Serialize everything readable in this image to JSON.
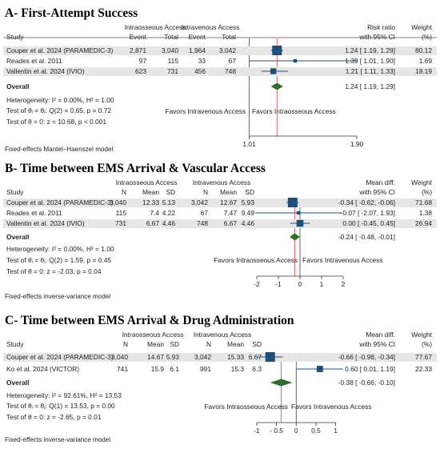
{
  "panels": [
    {
      "title": "A- First-Attempt Success",
      "header_groups": [
        "Intraosseous Access",
        "Intravenous Access"
      ],
      "header_cols": [
        "Study",
        "Event",
        "Total",
        "Event",
        "Total"
      ],
      "ci_header": [
        "Risk ratio",
        "with 95% CI"
      ],
      "weight_header": [
        "Weight",
        "(%)"
      ],
      "studies": [
        {
          "name": "Couper et al. 2024 (PARAMEDIC-3)",
          "cells": [
            "2,871",
            "3,040",
            "1,964",
            "3,042"
          ],
          "est": 1.24,
          "lo": 1.19,
          "hi": 1.29,
          "ci_text": "1.24 [ 1.19, 1.29]",
          "weight": "80.12",
          "wnum": 80.12
        },
        {
          "name": "Reades et al. 2011",
          "cells": [
            "97",
            "115",
            "33",
            "67"
          ],
          "est": 1.39,
          "lo": 1.01,
          "hi": 1.9,
          "ci_text": "1.39 [ 1.01, 1.90]",
          "weight": "1.69",
          "wnum": 1.69
        },
        {
          "name": "Vallentin et al. 2024 (IVIO)",
          "cells": [
            "623",
            "731",
            "456",
            "748"
          ],
          "est": 1.21,
          "lo": 1.11,
          "hi": 1.33,
          "ci_text": "1.21 [ 1.11, 1.33]",
          "weight": "18.19",
          "wnum": 18.19
        }
      ],
      "overall": {
        "label": "Overall",
        "est": 1.24,
        "lo": 1.19,
        "hi": 1.29,
        "ci_text": "1.24 [ 1.19, 1.29]"
      },
      "stats": [
        "Heterogeneity: I² = 0.00%, H² = 1.00",
        "Test of θᵢ = θⱼ: Q(2) = 0.65, p = 0.72",
        "Test of θ = 0: z = 10.68, p < 0.001"
      ],
      "favors_left": "Favors Intravenous Access",
      "favors_right": "Favors Intraosseous Access",
      "axis": {
        "min": 1.0,
        "max": 1.9,
        "ticks": [
          {
            "v": 1.01,
            "label": "1.01"
          },
          {
            "v": 1.9,
            "label": "1.90"
          }
        ],
        "null_value": 1.01
      },
      "model_note": "Fixed-effects Mantel–Haenszel model"
    },
    {
      "title": "B- Time between EMS Arrival & Vascular Access",
      "header_groups": [
        "Intraosseous Access",
        "Intravenous Access"
      ],
      "header_cols": [
        "Study",
        "N",
        "Mean",
        "SD",
        "N",
        "Mean",
        "SD"
      ],
      "ci_header": [
        "Mean diff.",
        "with 95% CI"
      ],
      "weight_header": [
        "Weight",
        "(%)"
      ],
      "studies": [
        {
          "name": "Couper et al. 2024 (PARAMEDIC-3)",
          "cells": [
            "3,040",
            "12.33",
            "5.13",
            "3,042",
            "12.67",
            "5.93"
          ],
          "est": -0.34,
          "lo": -0.62,
          "hi": -0.06,
          "ci_text": "-0.34 [ -0.62, -0.06]",
          "weight": "71.68",
          "wnum": 71.68
        },
        {
          "name": "Reades et al. 2011",
          "cells": [
            "115",
            "7.4",
            "4.22",
            "67",
            "7.47",
            "9.49"
          ],
          "est": -0.07,
          "lo": -2.07,
          "hi": 1.93,
          "ci_text": "-0.07 [ -2.07, 1.93]",
          "weight": "1.38",
          "wnum": 1.38
        },
        {
          "name": "Vallentin et al. 2024 (IVIO)",
          "cells": [
            "731",
            "6.67",
            "4.46",
            "748",
            "6.67",
            "4.46"
          ],
          "est": 0.0,
          "lo": -0.45,
          "hi": 0.45,
          "ci_text": "0.00 [ -0.45, 0.45]",
          "weight": "26.94",
          "wnum": 26.94
        }
      ],
      "overall": {
        "label": "Overall",
        "est": -0.24,
        "lo": -0.48,
        "hi": -0.01,
        "ci_text": "-0.24 [ -0.48, -0.01]"
      },
      "stats": [
        "Heterogeneity: I² = 0.00%, H² = 1.00",
        "Test of θᵢ = θⱼ: Q(2) = 1.59, p = 0.45",
        "Test of θ = 0: z = -2.03, p = 0.04"
      ],
      "favors_left": "Favors Intraosseous Access",
      "favors_right": "Favors Intravenous Access",
      "axis": {
        "min": -2,
        "max": 2,
        "ticks": [
          {
            "v": -2,
            "label": "-2"
          },
          {
            "v": -1,
            "label": "-1"
          },
          {
            "v": 0,
            "label": "0"
          },
          {
            "v": 1,
            "label": "1"
          },
          {
            "v": 2,
            "label": "2"
          }
        ],
        "null_value": 0
      },
      "model_note": "Fixed-effects inverse-variance model"
    },
    {
      "title": "C- Time between EMS Arrival & Drug Administration",
      "header_groups": [
        "Intraosseous Access",
        "Intravenous Access"
      ],
      "header_cols": [
        "Study",
        "N",
        "Mean",
        "SD",
        "N",
        "Mean",
        "SD"
      ],
      "ci_header": [
        "Mean diff.",
        "with 95% CI"
      ],
      "weight_header": [
        "Weight",
        "(%)"
      ],
      "studies": [
        {
          "name": "Couper et al. 2024 (PARAMEDIC-3)",
          "cells": [
            "3,040",
            "14.67",
            "5.93",
            "3,042",
            "15.33",
            "6.67"
          ],
          "est": -0.66,
          "lo": -0.98,
          "hi": -0.34,
          "ci_text": "-0.66 [ -0.98, -0.34]",
          "weight": "77.67",
          "wnum": 77.67
        },
        {
          "name": "Ko et al. 2024 (VICTOR)",
          "cells": [
            "741",
            "15.9",
            "6.1",
            "991",
            "15.3",
            "6.3"
          ],
          "est": 0.6,
          "lo": 0.01,
          "hi": 1.19,
          "ci_text": "0.60 [ 0.01, 1.19]",
          "weight": "22.33",
          "wnum": 22.33
        }
      ],
      "overall": {
        "label": "Overall",
        "est": -0.38,
        "lo": -0.66,
        "hi": -0.1,
        "ci_text": "-0.38 [ -0.66, -0.10]"
      },
      "stats": [
        "Heterogeneity: I² = 92.61%, H² = 13.53",
        "Test of θᵢ = θⱼ: Q(1) = 13.53, p = 0.00",
        "Test of θ = 0: z = -2.65, p = 0.01"
      ],
      "favors_left": "Favors Intraosseous Access",
      "favors_right": "Favors Intravenous Access",
      "axis": {
        "min": -1.1,
        "max": 1.15,
        "ticks": [
          {
            "v": -1,
            "label": "-1"
          },
          {
            "v": -0.5,
            "label": "- 0.5"
          },
          {
            "v": 0,
            "label": "0"
          },
          {
            "v": 0.5,
            "label": "0.5"
          },
          {
            "v": 1,
            "label": "1"
          }
        ],
        "null_value": 0
      },
      "model_note": "Fixed-effects inverse-variance model"
    }
  ],
  "colors": {
    "marker": "#1f4e79",
    "diamond": "#2e6b2e",
    "null_line": "#444444",
    "overall_line": "#e0404a",
    "favors": "#2e7d2e",
    "favors_alt": "#222222",
    "row_band": "#e6e6e6"
  },
  "chart_data": [
    {
      "type": "forest",
      "title": "A- First-Attempt Success",
      "measure": "Risk ratio",
      "categories": [
        "Couper et al. 2024 (PARAMEDIC-3)",
        "Reades et al. 2011",
        "Vallentin et al. 2024 (IVIO)",
        "Overall"
      ],
      "estimates": [
        1.24,
        1.39,
        1.21,
        1.24
      ],
      "ci_low": [
        1.19,
        1.01,
        1.11,
        1.19
      ],
      "ci_high": [
        1.29,
        1.9,
        1.33,
        1.29
      ],
      "weights": [
        80.12,
        1.69,
        18.19
      ],
      "xlim": [
        1.01,
        1.9
      ]
    },
    {
      "type": "forest",
      "title": "B- Time between EMS Arrival & Vascular Access",
      "measure": "Mean diff.",
      "categories": [
        "Couper et al. 2024 (PARAMEDIC-3)",
        "Reades et al. 2011",
        "Vallentin et al. 2024 (IVIO)",
        "Overall"
      ],
      "estimates": [
        -0.34,
        -0.07,
        0.0,
        -0.24
      ],
      "ci_low": [
        -0.62,
        -2.07,
        -0.45,
        -0.48
      ],
      "ci_high": [
        -0.06,
        1.93,
        0.45,
        -0.01
      ],
      "weights": [
        71.68,
        1.38,
        26.94
      ],
      "xlim": [
        -2,
        2
      ]
    },
    {
      "type": "forest",
      "title": "C- Time between EMS Arrival & Drug Administration",
      "measure": "Mean diff.",
      "categories": [
        "Couper et al. 2024 (PARAMEDIC-3)",
        "Ko et al. 2024 (VICTOR)",
        "Overall"
      ],
      "estimates": [
        -0.66,
        0.6,
        -0.38
      ],
      "ci_low": [
        -0.98,
        0.01,
        -0.66
      ],
      "ci_high": [
        -0.34,
        1.19,
        -0.1
      ],
      "weights": [
        77.67,
        22.33
      ],
      "xlim": [
        -1,
        1
      ]
    }
  ]
}
